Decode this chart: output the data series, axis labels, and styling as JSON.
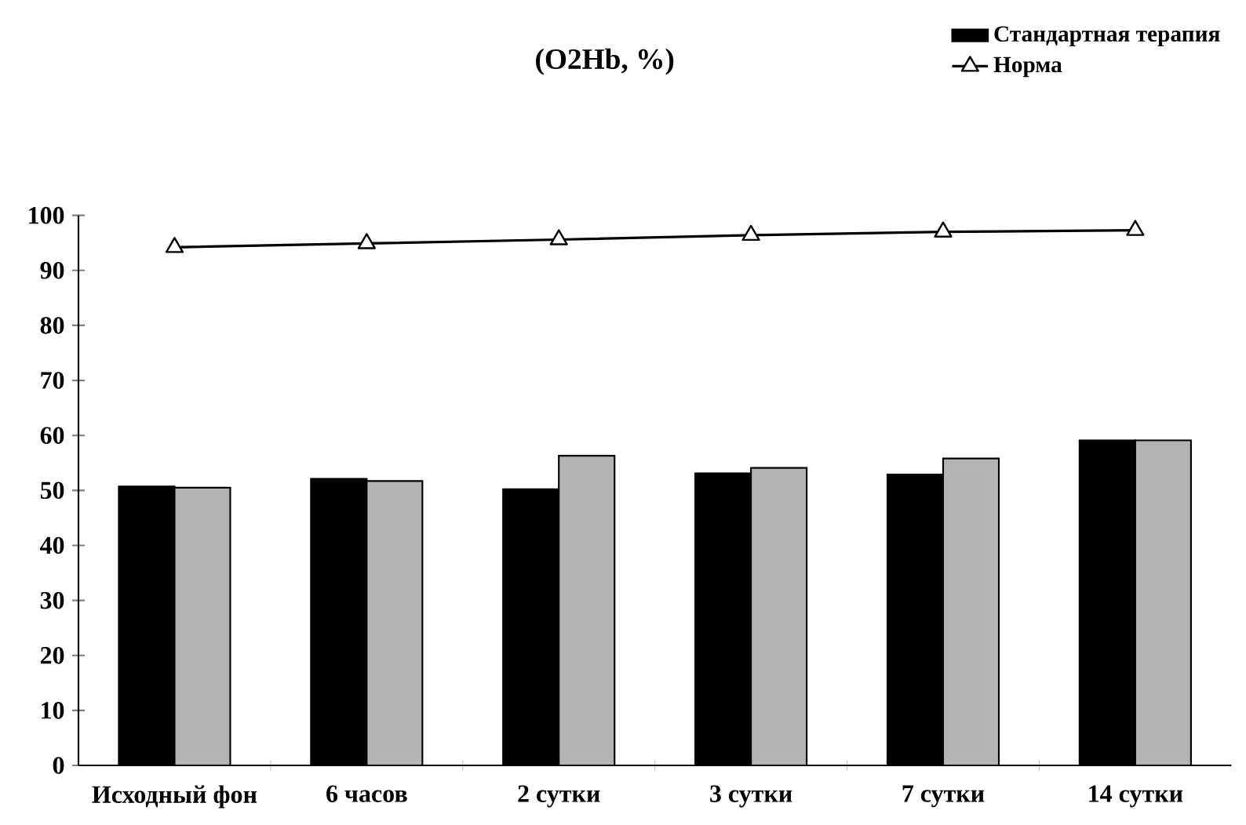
{
  "chart_data": {
    "type": "bar",
    "title": "(O2Hb, %)",
    "categories": [
      "Исходный фон",
      "6 часов",
      "2 сутки",
      "3 сутки",
      "7 сутки",
      "14 сутки"
    ],
    "series": [
      {
        "name": "Стандартная терапия",
        "color": "#000000",
        "values": [
          50.7,
          52.1,
          50.2,
          53.1,
          52.9,
          59.1
        ]
      },
      {
        "color": "#b4b4b4",
        "values": [
          50.5,
          51.7,
          56.3,
          54.1,
          55.8,
          59.1
        ]
      },
      {
        "name": "Норма",
        "type": "line",
        "color": "#000000",
        "marker": "triangle",
        "values": [
          94.2,
          94.9,
          95.6,
          96.4,
          97.0,
          97.3
        ]
      }
    ],
    "ylim": [
      0,
      100
    ],
    "yticks": [
      0,
      10,
      20,
      30,
      40,
      50,
      60,
      70,
      80,
      90,
      100
    ],
    "legend": "top right"
  }
}
